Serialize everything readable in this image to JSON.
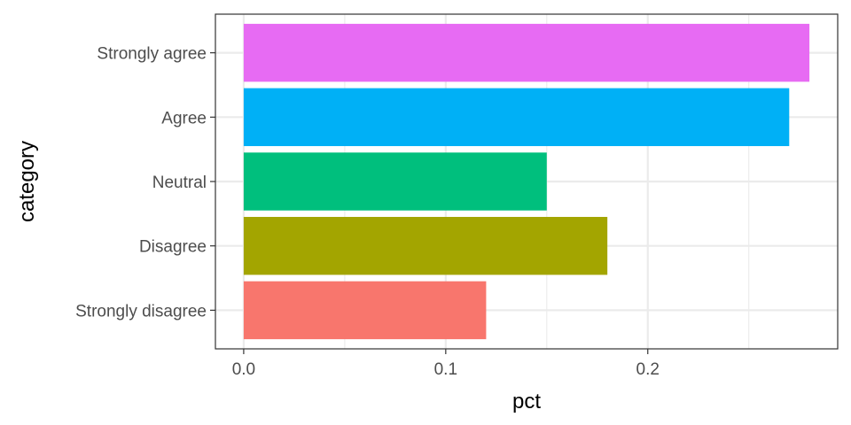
{
  "chart_data": {
    "type": "bar",
    "orientation": "horizontal",
    "categories": [
      "Strongly disagree",
      "Disagree",
      "Neutral",
      "Agree",
      "Strongly agree"
    ],
    "values": [
      0.12,
      0.18,
      0.15,
      0.27,
      0.28
    ],
    "colors": [
      "#F8766D",
      "#A3A500",
      "#00BF7D",
      "#00B0F6",
      "#E76BF3"
    ],
    "xlabel": "pct",
    "ylabel": "category",
    "xlim": [
      -0.014,
      0.294
    ],
    "xticks": [
      0.0,
      0.1,
      0.2
    ],
    "xtick_labels": [
      "0.0",
      "0.1",
      "0.2"
    ],
    "grid": true,
    "legend": "none"
  }
}
